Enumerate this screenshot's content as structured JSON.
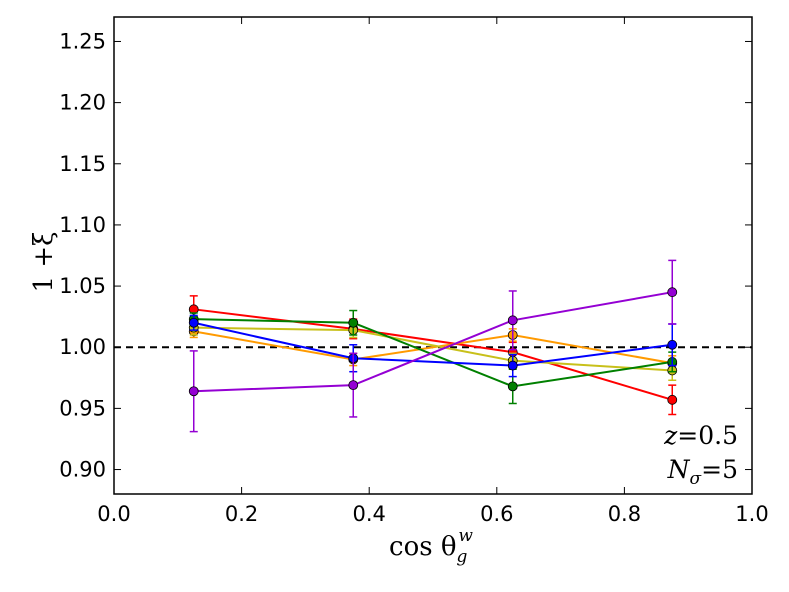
{
  "chart_data": {
    "type": "line",
    "title": "",
    "xlabel_parts": {
      "base": "cos θ",
      "sub": "g",
      "sup": "w"
    },
    "ylabel": "1 +ξ",
    "xlim": [
      0.0,
      1.0
    ],
    "ylim": [
      0.88,
      1.27
    ],
    "xticks": [
      "0.0",
      "0.2",
      "0.4",
      "0.6",
      "0.8",
      "1.0"
    ],
    "xtick_values": [
      0.0,
      0.2,
      0.4,
      0.6,
      0.8,
      1.0
    ],
    "yticks": [
      "0.90",
      "0.95",
      "1.00",
      "1.05",
      "1.10",
      "1.15",
      "1.20",
      "1.25"
    ],
    "ytick_values": [
      0.9,
      0.95,
      1.0,
      1.05,
      1.1,
      1.15,
      1.2,
      1.25
    ],
    "reference_line": 1.0,
    "x": [
      0.125,
      0.375,
      0.625,
      0.875
    ],
    "series": [
      {
        "name": "red",
        "color": "#ff0000",
        "values": [
          1.031,
          1.015,
          0.996,
          0.957
        ],
        "errors": [
          0.011,
          0.008,
          0.008,
          0.012
        ]
      },
      {
        "name": "orange",
        "color": "#ff9a00",
        "values": [
          1.013,
          0.99,
          1.01,
          0.987
        ],
        "errors": [
          0.005,
          0.005,
          0.005,
          0.006
        ]
      },
      {
        "name": "yellow",
        "color": "#c8c01a",
        "values": [
          1.016,
          1.014,
          0.989,
          0.981
        ],
        "errors": [
          0.006,
          0.006,
          0.006,
          0.008
        ]
      },
      {
        "name": "green",
        "color": "#008000",
        "values": [
          1.023,
          1.02,
          0.968,
          0.988
        ],
        "errors": [
          0.005,
          0.01,
          0.014,
          0.008
        ]
      },
      {
        "name": "blue",
        "color": "#0000ff",
        "values": [
          1.02,
          0.991,
          0.985,
          1.002
        ],
        "errors": [
          0.006,
          0.011,
          0.009,
          0.017
        ]
      },
      {
        "name": "purple",
        "color": "#9400d3",
        "values": [
          0.964,
          0.969,
          1.022,
          1.045
        ],
        "errors": [
          0.033,
          0.026,
          0.024,
          0.026
        ]
      }
    ],
    "annotations": {
      "z_label": "z",
      "z_value": "=0.5",
      "n_label": "N",
      "n_sub": "σ",
      "n_value": "=5"
    }
  }
}
